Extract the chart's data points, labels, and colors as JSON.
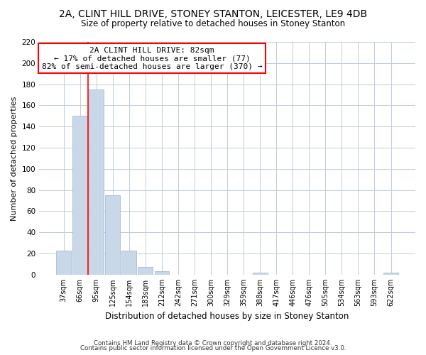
{
  "title": "2A, CLINT HILL DRIVE, STONEY STANTON, LEICESTER, LE9 4DB",
  "subtitle": "Size of property relative to detached houses in Stoney Stanton",
  "xlabel": "Distribution of detached houses by size in Stoney Stanton",
  "ylabel": "Number of detached properties",
  "bar_labels": [
    "37sqm",
    "66sqm",
    "95sqm",
    "125sqm",
    "154sqm",
    "183sqm",
    "212sqm",
    "242sqm",
    "271sqm",
    "300sqm",
    "329sqm",
    "359sqm",
    "388sqm",
    "417sqm",
    "446sqm",
    "476sqm",
    "505sqm",
    "534sqm",
    "563sqm",
    "593sqm",
    "622sqm"
  ],
  "bar_values": [
    23,
    150,
    175,
    75,
    23,
    7,
    3,
    0,
    0,
    0,
    0,
    0,
    2,
    0,
    0,
    0,
    0,
    0,
    0,
    0,
    2
  ],
  "bar_color": "#c8d8e8",
  "bar_edge_color": "#a8bcd0",
  "vline_x": 1.5,
  "vline_color": "red",
  "ylim": [
    0,
    220
  ],
  "yticks": [
    0,
    20,
    40,
    60,
    80,
    100,
    120,
    140,
    160,
    180,
    200,
    220
  ],
  "annotation_title": "2A CLINT HILL DRIVE: 82sqm",
  "annotation_line1": "← 17% of detached houses are smaller (77)",
  "annotation_line2": "82% of semi-detached houses are larger (370) →",
  "annotation_box_color": "white",
  "annotation_box_edge": "red",
  "footer_line1": "Contains HM Land Registry data © Crown copyright and database right 2024.",
  "footer_line2": "Contains public sector information licensed under the Open Government Licence v3.0.",
  "background_color": "white",
  "grid_color": "#c0ccdc"
}
